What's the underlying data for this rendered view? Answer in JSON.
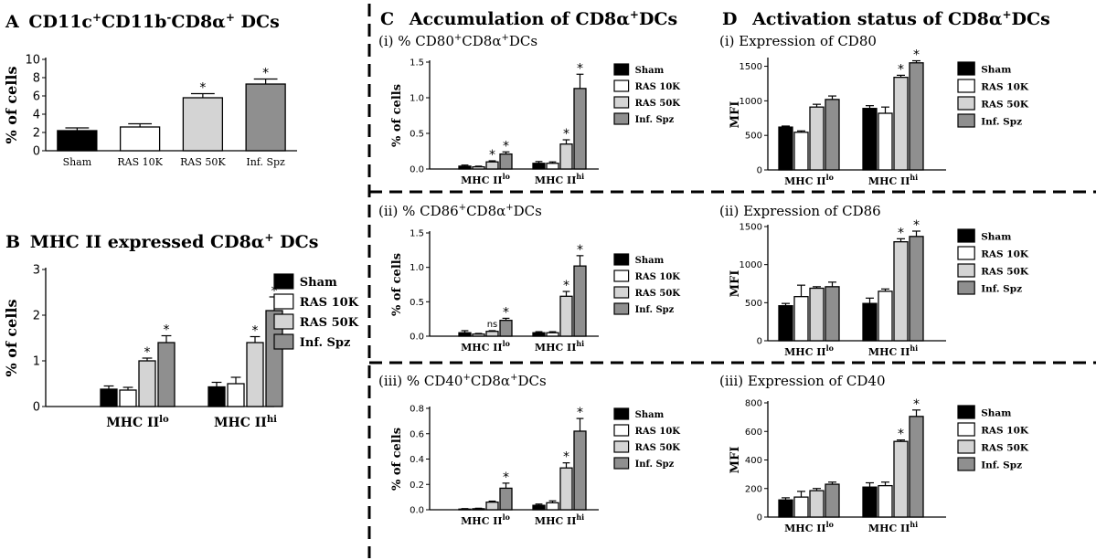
{
  "colors": {
    "sham": "#000000",
    "ras10k": "#ffffff",
    "ras50k": "#d4d4d4",
    "infspz": "#8f8f8f",
    "axis": "#000000",
    "divider": "#000000"
  },
  "legend": [
    "Sham",
    "RAS 10K",
    "RAS 50K",
    "Inf. Spz"
  ],
  "group_base": "MHC II",
  "group_sup": [
    "lo",
    "hi"
  ],
  "headings": {
    "A": {
      "letter": "A",
      "pre": "CD11c",
      "s1": "+",
      "mid1": "CD11b",
      "s2": "-",
      "mid2": "CD8α",
      "s3": "+",
      "post": " DCs"
    },
    "B": {
      "letter": "B",
      "pre": "MHC II expressed CD8α",
      "s1": "+",
      "post": " DCs"
    },
    "C": {
      "letter": "C",
      "pre": "Accumulation of CD8α",
      "s1": "+",
      "post": "DCs"
    },
    "D": {
      "letter": "D",
      "pre": "Activation status of  CD8α",
      "s1": "+",
      "post": "DCs"
    }
  },
  "chart_data": [
    {
      "id": "A",
      "type": "bar",
      "ylabel": "% of cells",
      "ylim": [
        0,
        10
      ],
      "yticks": [
        0,
        2,
        4,
        6,
        8,
        10
      ],
      "categories": [
        "Sham",
        "RAS 10K",
        "RAS 50K",
        "Inf. Spz"
      ],
      "values": [
        2.2,
        2.6,
        5.8,
        7.3
      ],
      "errors": [
        0.3,
        0.35,
        0.45,
        0.55
      ],
      "annotations": [
        "",
        "",
        "*",
        "*"
      ]
    },
    {
      "id": "B",
      "type": "bar",
      "ylabel": "% of cells",
      "ylim": [
        0,
        3
      ],
      "yticks": [
        0,
        1,
        2,
        3
      ],
      "groups": [
        "lo",
        "hi"
      ],
      "series": [
        {
          "name": "Sham",
          "values": [
            0.38,
            0.43
          ],
          "errors": [
            0.07,
            0.1
          ]
        },
        {
          "name": "RAS 10K",
          "values": [
            0.36,
            0.5
          ],
          "errors": [
            0.06,
            0.14
          ]
        },
        {
          "name": "RAS 50K",
          "values": [
            1.0,
            1.4
          ],
          "errors": [
            0.06,
            0.13
          ]
        },
        {
          "name": "Inf. Spz",
          "values": [
            1.4,
            2.1
          ],
          "errors": [
            0.15,
            0.3
          ]
        }
      ],
      "annotations": [
        [
          "",
          "",
          "*",
          "*"
        ],
        [
          "",
          "",
          "*",
          "*"
        ]
      ]
    },
    {
      "id": "Ci",
      "type": "bar",
      "subtitle_pre": "(i) % CD80",
      "subtitle_sup": "+",
      "subtitle_post": "CD8α",
      "subtitle_sup2": "+",
      "subtitle_end": "DCs",
      "ylabel": "% of cells",
      "ylim": [
        0,
        1.5
      ],
      "yticks": [
        0.0,
        0.5,
        1.0,
        1.5
      ],
      "tick_decimals": 1,
      "groups": [
        "lo",
        "hi"
      ],
      "series": [
        {
          "name": "Sham",
          "values": [
            0.04,
            0.08
          ],
          "errors": [
            0.015,
            0.025
          ]
        },
        {
          "name": "RAS 10K",
          "values": [
            0.03,
            0.08
          ],
          "errors": [
            0.01,
            0.02
          ]
        },
        {
          "name": "RAS 50K",
          "values": [
            0.1,
            0.35
          ],
          "errors": [
            0.015,
            0.06
          ]
        },
        {
          "name": "Inf. Spz",
          "values": [
            0.21,
            1.13
          ],
          "errors": [
            0.03,
            0.2
          ]
        }
      ],
      "annotations": [
        [
          "",
          "",
          "*",
          "*"
        ],
        [
          "",
          "",
          "*",
          "*"
        ]
      ]
    },
    {
      "id": "Cii",
      "type": "bar",
      "subtitle_pre": "(ii) % CD86",
      "subtitle_sup": "+",
      "subtitle_post": "CD8α",
      "subtitle_sup2": "+",
      "subtitle_end": "DCs",
      "ylabel": "% of cells",
      "ylim": [
        0,
        1.5
      ],
      "yticks": [
        0.0,
        0.5,
        1.0,
        1.5
      ],
      "tick_decimals": 1,
      "groups": [
        "lo",
        "hi"
      ],
      "series": [
        {
          "name": "Sham",
          "values": [
            0.05,
            0.05
          ],
          "errors": [
            0.03,
            0.015
          ]
        },
        {
          "name": "RAS 10K",
          "values": [
            0.03,
            0.05
          ],
          "errors": [
            0.01,
            0.015
          ]
        },
        {
          "name": "RAS 50K",
          "values": [
            0.07,
            0.58
          ],
          "errors": [
            0.01,
            0.07
          ]
        },
        {
          "name": "Inf. Spz",
          "values": [
            0.23,
            1.02
          ],
          "errors": [
            0.03,
            0.15
          ]
        }
      ],
      "annotations": [
        [
          "",
          "",
          "ns",
          "*"
        ],
        [
          "",
          "",
          "*",
          "*"
        ]
      ]
    },
    {
      "id": "Ciii",
      "type": "bar",
      "subtitle_pre": "(iii) % CD40",
      "subtitle_sup": "+",
      "subtitle_post": "CD8α",
      "subtitle_sup2": "+",
      "subtitle_end": "DCs",
      "ylabel": "% of cells",
      "ylim": [
        0,
        0.8
      ],
      "yticks": [
        0.0,
        0.2,
        0.4,
        0.6,
        0.8
      ],
      "tick_decimals": 1,
      "groups": [
        "lo",
        "hi"
      ],
      "series": [
        {
          "name": "Sham",
          "values": [
            0.005,
            0.035
          ],
          "errors": [
            0.004,
            0.01
          ]
        },
        {
          "name": "RAS 10K",
          "values": [
            0.008,
            0.055
          ],
          "errors": [
            0.004,
            0.015
          ]
        },
        {
          "name": "RAS 50K",
          "values": [
            0.06,
            0.33
          ],
          "errors": [
            0.008,
            0.04
          ]
        },
        {
          "name": "Inf. Spz",
          "values": [
            0.17,
            0.62
          ],
          "errors": [
            0.04,
            0.1
          ]
        }
      ],
      "annotations": [
        [
          "",
          "",
          "",
          "*"
        ],
        [
          "",
          "",
          "*",
          "*"
        ]
      ]
    },
    {
      "id": "Di",
      "type": "bar",
      "subtitle_pre": "(i) Expression of CD80",
      "ylabel": "MFI",
      "ylim": [
        0,
        1600
      ],
      "yticks": [
        0,
        500,
        1000,
        1500
      ],
      "groups": [
        "lo",
        "hi"
      ],
      "series": [
        {
          "name": "Sham",
          "values": [
            620,
            890
          ],
          "errors": [
            15,
            40
          ]
        },
        {
          "name": "RAS 10K",
          "values": [
            545,
            820
          ],
          "errors": [
            20,
            90
          ]
        },
        {
          "name": "RAS 50K",
          "values": [
            910,
            1340
          ],
          "errors": [
            40,
            30
          ]
        },
        {
          "name": "Inf. Spz",
          "values": [
            1020,
            1550
          ],
          "errors": [
            50,
            30
          ]
        }
      ],
      "annotations": [
        [
          "",
          "",
          "",
          ""
        ],
        [
          "",
          "",
          "*",
          "*"
        ]
      ]
    },
    {
      "id": "Dii",
      "type": "bar",
      "subtitle_pre": "(ii) Expression of CD86",
      "ylabel": "MFI",
      "ylim": [
        0,
        1500
      ],
      "yticks": [
        0,
        500,
        1000,
        1500
      ],
      "groups": [
        "lo",
        "hi"
      ],
      "series": [
        {
          "name": "Sham",
          "values": [
            460,
            490
          ],
          "errors": [
            30,
            70
          ]
        },
        {
          "name": "RAS 10K",
          "values": [
            580,
            650
          ],
          "errors": [
            150,
            30
          ]
        },
        {
          "name": "RAS 50K",
          "values": [
            690,
            1300
          ],
          "errors": [
            20,
            40
          ]
        },
        {
          "name": "Inf. Spz",
          "values": [
            710,
            1370
          ],
          "errors": [
            60,
            70
          ]
        }
      ],
      "annotations": [
        [
          "",
          "",
          "",
          ""
        ],
        [
          "",
          "",
          "*",
          "*"
        ]
      ]
    },
    {
      "id": "Diii",
      "type": "bar",
      "subtitle_pre": "(iii) Expression of CD40",
      "ylabel": "MFI",
      "ylim": [
        0,
        800
      ],
      "yticks": [
        0,
        200,
        400,
        600,
        800
      ],
      "groups": [
        "lo",
        "hi"
      ],
      "series": [
        {
          "name": "Sham",
          "values": [
            120,
            210
          ],
          "errors": [
            15,
            30
          ]
        },
        {
          "name": "RAS 10K",
          "values": [
            140,
            220
          ],
          "errors": [
            40,
            25
          ]
        },
        {
          "name": "RAS 50K",
          "values": [
            185,
            530
          ],
          "errors": [
            15,
            10
          ]
        },
        {
          "name": "Inf. Spz",
          "values": [
            230,
            705
          ],
          "errors": [
            15,
            45
          ]
        }
      ],
      "annotations": [
        [
          "",
          "",
          "",
          ""
        ],
        [
          "",
          "",
          "*",
          "*"
        ]
      ]
    }
  ]
}
